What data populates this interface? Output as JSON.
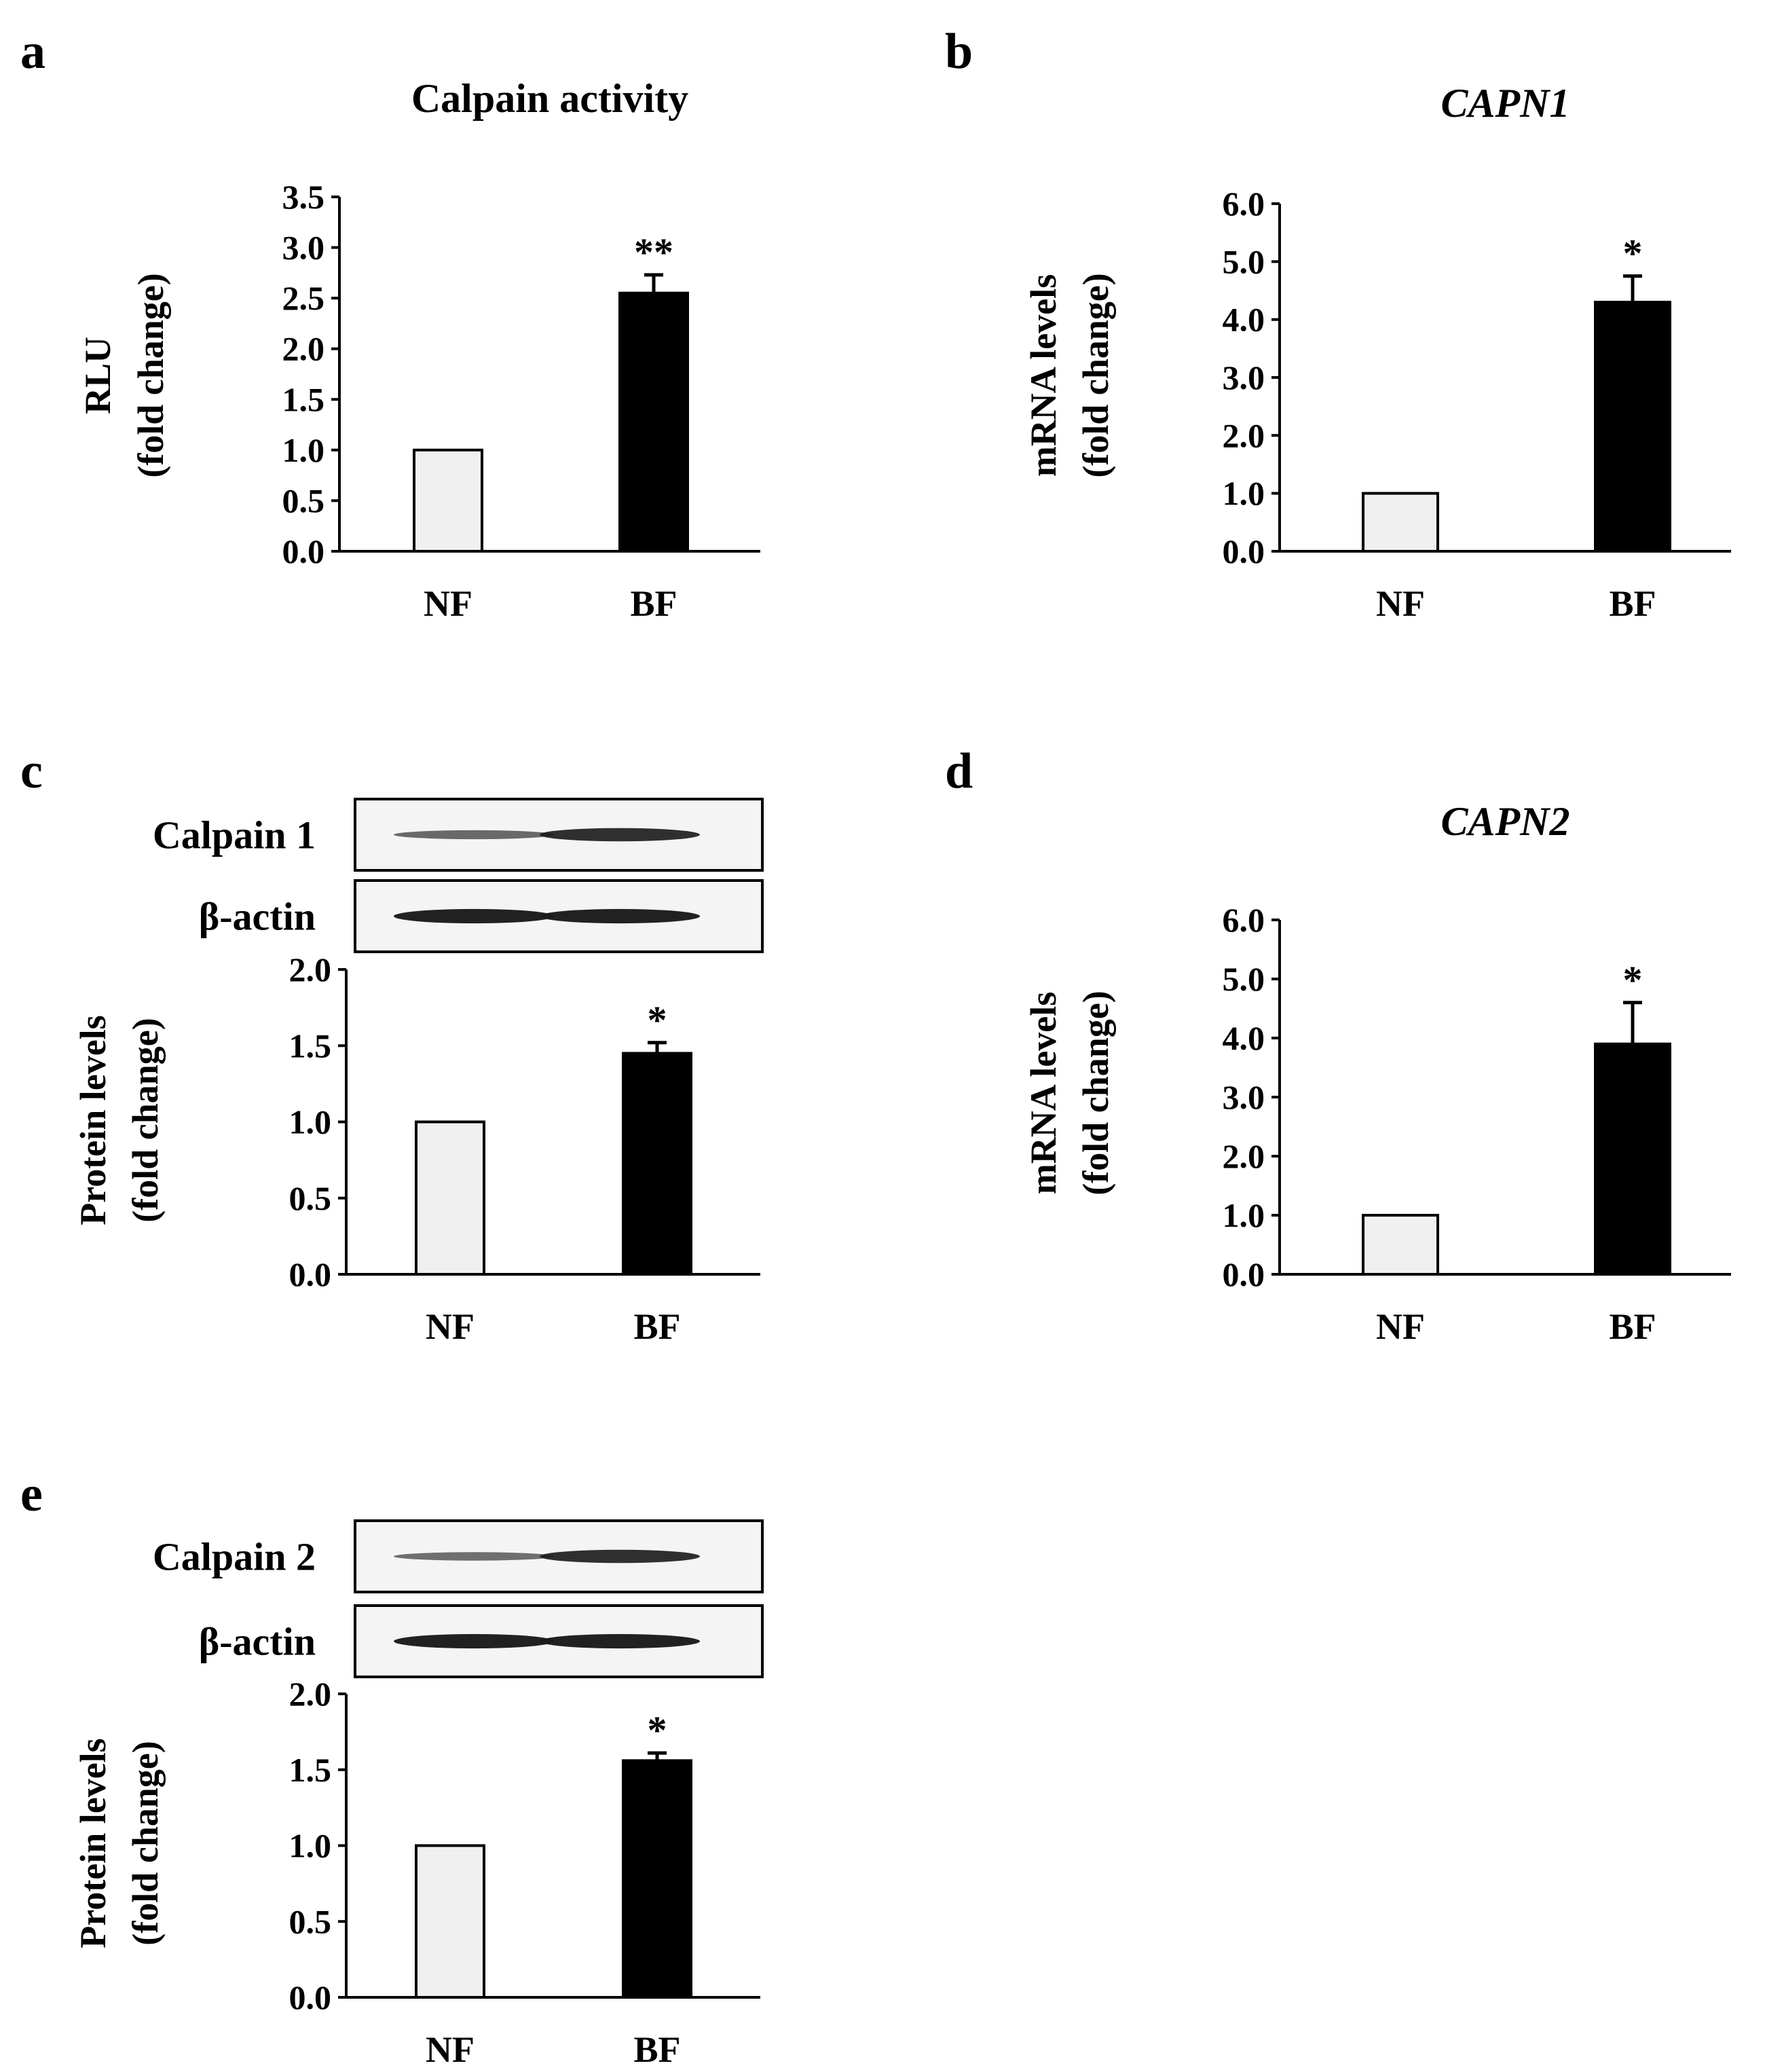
{
  "colors": {
    "nf_bar": "#f0f0f0",
    "bf_bar": "#000000",
    "axis": "#000000",
    "band": "#1a1a1a",
    "blot_bg": "#f4f4f4"
  },
  "chart_data": [
    {
      "panel": "a",
      "type": "bar",
      "title": "Calpain activity",
      "title_italic": false,
      "ylabel": [
        "RLU",
        "(fold change)"
      ],
      "categories": [
        "NF",
        "BF"
      ],
      "values": [
        1.0,
        2.55
      ],
      "errors": [
        0,
        0.18
      ],
      "significance": [
        "",
        "**"
      ],
      "ylim": [
        0,
        3.5
      ],
      "yticks": [
        "0.0",
        "0.5",
        "1.0",
        "1.5",
        "2.0",
        "2.5",
        "3.0",
        "3.5"
      ],
      "blots": []
    },
    {
      "panel": "b",
      "type": "bar",
      "title": "CAPN1",
      "title_italic": true,
      "ylabel": [
        "mRNA levels",
        "(fold change)"
      ],
      "categories": [
        "NF",
        "BF"
      ],
      "values": [
        1.0,
        4.3
      ],
      "errors": [
        0,
        0.45
      ],
      "significance": [
        "",
        "*"
      ],
      "ylim": [
        0,
        6
      ],
      "yticks": [
        "0.0",
        "1.0",
        "2.0",
        "3.0",
        "4.0",
        "5.0",
        "6.0"
      ],
      "blots": []
    },
    {
      "panel": "c",
      "type": "bar",
      "title": "",
      "title_italic": false,
      "ylabel": [
        "Protein levels",
        "(fold change)"
      ],
      "categories": [
        "NF",
        "BF"
      ],
      "values": [
        1.0,
        1.45
      ],
      "errors": [
        0,
        0.07
      ],
      "significance": [
        "",
        "*"
      ],
      "ylim": [
        0,
        2
      ],
      "yticks": [
        "0.0",
        "0.5",
        "1.0",
        "1.5",
        "2.0"
      ],
      "blots": [
        {
          "label": "Calpain 1",
          "lanes": [
            0.45,
            0.85
          ]
        },
        {
          "label": "β-actin",
          "lanes": [
            0.95,
            0.95
          ]
        }
      ]
    },
    {
      "panel": "d",
      "type": "bar",
      "title": "CAPN2",
      "title_italic": true,
      "ylabel": [
        "mRNA levels",
        "(fold change)"
      ],
      "categories": [
        "NF",
        "BF"
      ],
      "values": [
        1.0,
        3.9
      ],
      "errors": [
        0,
        0.7
      ],
      "significance": [
        "",
        "*"
      ],
      "ylim": [
        0,
        6
      ],
      "yticks": [
        "0.0",
        "1.0",
        "2.0",
        "3.0",
        "4.0",
        "5.0",
        "6.0"
      ],
      "blots": []
    },
    {
      "panel": "e",
      "type": "bar",
      "title": "",
      "title_italic": false,
      "ylabel": [
        "Protein levels",
        "(fold change)"
      ],
      "categories": [
        "NF",
        "BF"
      ],
      "values": [
        1.0,
        1.56
      ],
      "errors": [
        0,
        0.05
      ],
      "significance": [
        "",
        "*"
      ],
      "ylim": [
        0,
        2
      ],
      "yticks": [
        "0.0",
        "0.5",
        "1.0",
        "1.5",
        "2.0"
      ],
      "blots": [
        {
          "label": "Calpain 2",
          "lanes": [
            0.4,
            0.85
          ]
        },
        {
          "label": "β-actin",
          "lanes": [
            0.95,
            0.95
          ]
        }
      ]
    }
  ]
}
